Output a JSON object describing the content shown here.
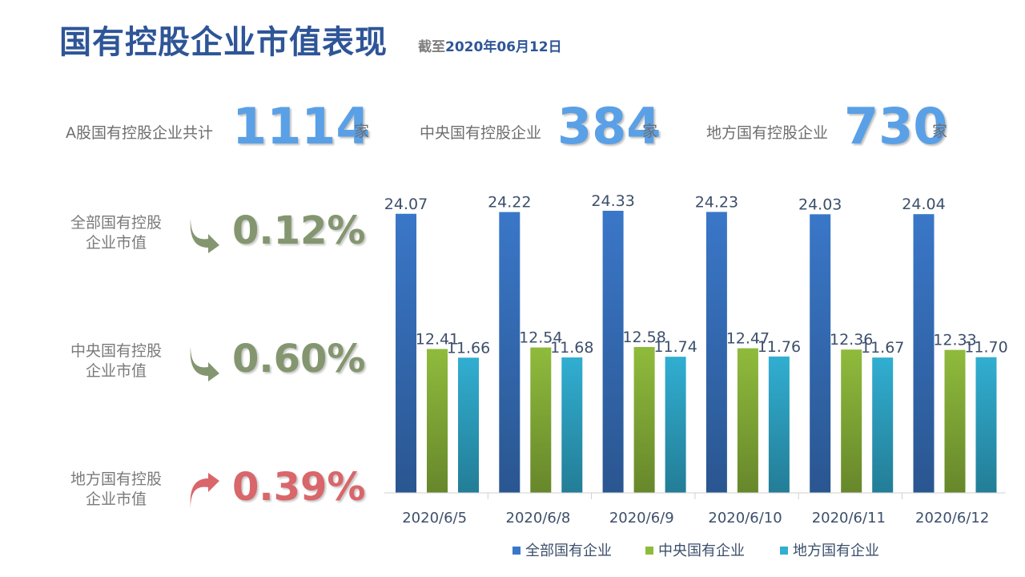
{
  "title": "国有控股企业市值表现",
  "subtitle_prefix": "截至",
  "subtitle_date": "2020年06月12日",
  "stats": [
    {
      "label": "A股国有控股企业共计",
      "value": "1114",
      "unit": "家"
    },
    {
      "label": "中央国有控股企业",
      "value": "384",
      "unit": "家"
    },
    {
      "label": "地方国有控股企业",
      "value": "730",
      "unit": "家"
    }
  ],
  "metrics": [
    {
      "label_line1": "全部国有控股",
      "label_line2": "企业市值",
      "direction": "down",
      "value": "0.12%",
      "color": "#84966f"
    },
    {
      "label_line1": "中央国有控股",
      "label_line2": "企业市值",
      "direction": "down",
      "value": "0.60%",
      "color": "#84966f"
    },
    {
      "label_line1": "地方国有控股",
      "label_line2": "企业市值",
      "direction": "up",
      "value": "0.39%",
      "color": "#d9666a"
    }
  ],
  "chart_data": {
    "type": "bar",
    "categories": [
      "2020/6/5",
      "2020/6/8",
      "2020/6/9",
      "2020/6/10",
      "2020/6/11",
      "2020/6/12"
    ],
    "series": [
      {
        "name": "全部国有企业",
        "values": [
          24.07,
          24.22,
          24.33,
          24.23,
          24.03,
          24.04
        ],
        "labels": [
          "24.07",
          "24.22",
          "24.33",
          "24.23",
          "24.03",
          "24.04"
        ],
        "color": "#3a77c8"
      },
      {
        "name": "中央国有企业",
        "values": [
          12.41,
          12.54,
          12.58,
          12.47,
          12.36,
          12.33
        ],
        "labels": [
          "12.41",
          "12.54",
          "12.58",
          "12.47",
          "12.36",
          "12.33"
        ],
        "color": "#8fbb3c"
      },
      {
        "name": "地方国有企业",
        "values": [
          11.66,
          11.68,
          11.74,
          11.76,
          11.67,
          11.7
        ],
        "labels": [
          "11.66",
          "11.68",
          "11.74",
          "11.76",
          "11.67",
          "11.70"
        ],
        "color": "#31aed1"
      }
    ],
    "ylim": [
      0,
      24.33
    ],
    "grid": false,
    "legend": "bottom"
  }
}
